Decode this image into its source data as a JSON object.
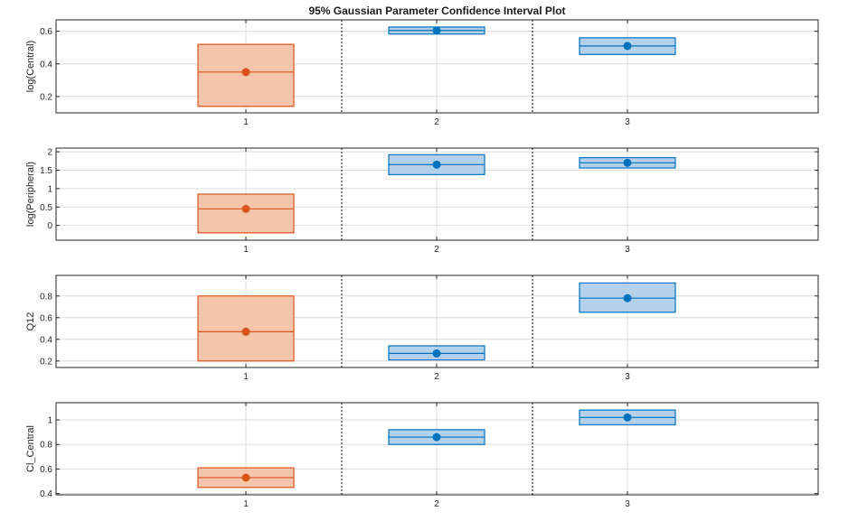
{
  "title": "95% Gaussian Parameter Confidence Interval Plot",
  "colors": {
    "orange_edge": "#D95319",
    "orange_fill": "#F5C6AC",
    "blue_edge": "#0072BD",
    "blue_fill": "#B3D1EB",
    "grid": "#dcdcdc",
    "axis": "#262626"
  },
  "chart_data": [
    {
      "type": "box",
      "ylabel": "log(Central)",
      "xticks": [
        "1",
        "2",
        "3"
      ],
      "ylim": [
        0.1,
        0.67
      ],
      "yticks": [
        0.2,
        0.4,
        0.6
      ],
      "grid": true,
      "groups": [
        {
          "x": "1",
          "estimate": 0.35,
          "lower": 0.14,
          "upper": 0.52,
          "color": "orange"
        },
        {
          "x": "2",
          "estimate": 0.605,
          "lower": 0.583,
          "upper": 0.626,
          "color": "blue"
        },
        {
          "x": "3",
          "estimate": 0.51,
          "lower": 0.458,
          "upper": 0.56,
          "color": "blue"
        }
      ]
    },
    {
      "type": "box",
      "ylabel": "log(Peripheral)",
      "xticks": [
        "1",
        "2",
        "3"
      ],
      "ylim": [
        -0.4,
        2.1
      ],
      "yticks": [
        0,
        0.5,
        1,
        1.5,
        2
      ],
      "grid": true,
      "groups": [
        {
          "x": "1",
          "estimate": 0.45,
          "lower": -0.2,
          "upper": 0.85,
          "color": "orange"
        },
        {
          "x": "2",
          "estimate": 1.65,
          "lower": 1.38,
          "upper": 1.92,
          "color": "blue"
        },
        {
          "x": "3",
          "estimate": 1.7,
          "lower": 1.56,
          "upper": 1.84,
          "color": "blue"
        }
      ]
    },
    {
      "type": "box",
      "ylabel": "Q12",
      "xticks": [
        "1",
        "2",
        "3"
      ],
      "ylim": [
        0.14,
        0.99
      ],
      "yticks": [
        0.2,
        0.4,
        0.6,
        0.8
      ],
      "grid": true,
      "groups": [
        {
          "x": "1",
          "estimate": 0.47,
          "lower": 0.2,
          "upper": 0.8,
          "color": "orange"
        },
        {
          "x": "2",
          "estimate": 0.27,
          "lower": 0.21,
          "upper": 0.34,
          "color": "blue"
        },
        {
          "x": "3",
          "estimate": 0.78,
          "lower": 0.65,
          "upper": 0.92,
          "color": "blue"
        }
      ]
    },
    {
      "type": "box",
      "ylabel": "Cl_Central",
      "xticks": [
        "1",
        "2",
        "3"
      ],
      "ylim": [
        0.39,
        1.14
      ],
      "yticks": [
        0.4,
        0.6,
        0.8,
        1
      ],
      "grid": true,
      "groups": [
        {
          "x": "1",
          "estimate": 0.53,
          "lower": 0.45,
          "upper": 0.61,
          "color": "orange"
        },
        {
          "x": "2",
          "estimate": 0.86,
          "lower": 0.8,
          "upper": 0.92,
          "color": "blue"
        },
        {
          "x": "3",
          "estimate": 1.02,
          "lower": 0.96,
          "upper": 1.08,
          "color": "blue"
        }
      ]
    }
  ]
}
